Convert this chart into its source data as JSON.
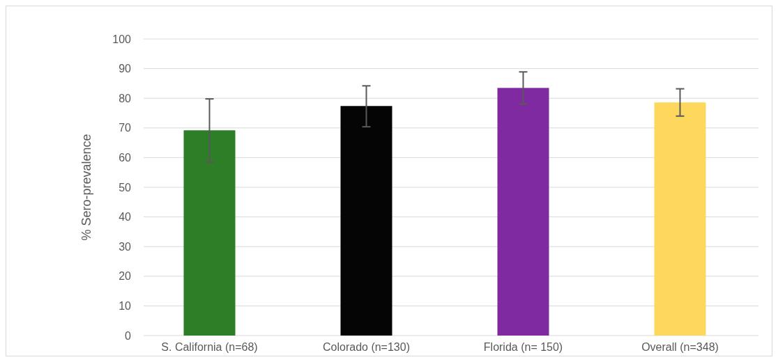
{
  "chart_data": {
    "type": "bar",
    "ylabel": "% Sero-prevalence",
    "categories": [
      "S. California (n=68)",
      "Colorado (n=130)",
      "Florida (n= 150)",
      "Overall (n=348)"
    ],
    "values": [
      69.2,
      77.4,
      83.5,
      78.6
    ],
    "colors": [
      "#2e7d27",
      "#050505",
      "#7f2aa0",
      "#fdd85d"
    ],
    "errors": [
      [
        58.4,
        79.8
      ],
      [
        70.4,
        84.2
      ],
      [
        78.1,
        88.9
      ],
      [
        74.0,
        83.2
      ]
    ],
    "ylim": [
      0,
      100
    ],
    "yticks": [
      0,
      10,
      20,
      30,
      40,
      50,
      60,
      70,
      80,
      90,
      100
    ],
    "grid": "y"
  }
}
